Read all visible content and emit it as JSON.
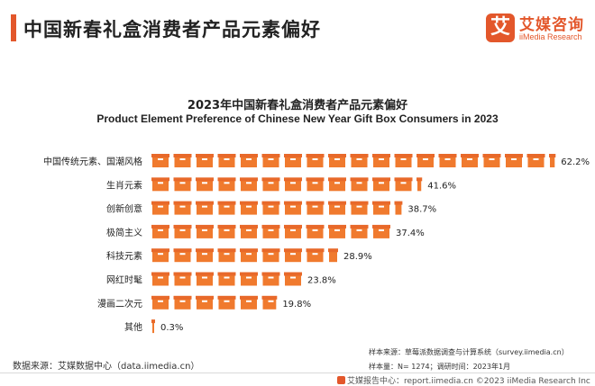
{
  "header": {
    "title": "中国新春礼盒消费者产品元素偏好"
  },
  "logo": {
    "mark": "艾",
    "name_cn": "艾媒咨询",
    "name_en": "iiMedia Research"
  },
  "colors": {
    "accent": "#e3572b",
    "box_fill": "#f07a2e",
    "box_lid": "#e8692a",
    "box_strap": "#ffffff"
  },
  "chart_data": {
    "type": "bar",
    "title": "2023年中国新春礼盒消费者产品元素偏好",
    "subtitle": "Product Element Preference of Chinese New Year Gift Box Consumers in 2023",
    "categories": [
      "中国传统元素、国潮风格",
      "生肖元素",
      "创新创意",
      "极简主义",
      "科技元素",
      "网红时髦",
      "漫画二次元",
      "其他"
    ],
    "values": [
      62.2,
      41.6,
      38.7,
      37.4,
      28.9,
      23.8,
      19.8,
      0.3
    ],
    "value_labels": [
      "62.2%",
      "41.6%",
      "38.7%",
      "37.4%",
      "28.9%",
      "23.8%",
      "19.8%",
      "0.3%"
    ],
    "unit": "%",
    "glyph": "gift-box-icon",
    "percent_per_icon": 3.4,
    "xlim": [
      0,
      70
    ],
    "grid": false,
    "legend": "none"
  },
  "notes": {
    "sample_source": "样本来源：草莓派数据调查与计算系统（survey.iimedia.cn）",
    "sample_info": "样本量：N= 1274；调研时间：2023年1月"
  },
  "source": "数据来源：艾媒数据中心（data.iimedia.cn）",
  "footer": "艾媒报告中心：report.iimedia.cn  ©2023  iiMedia Research  Inc"
}
